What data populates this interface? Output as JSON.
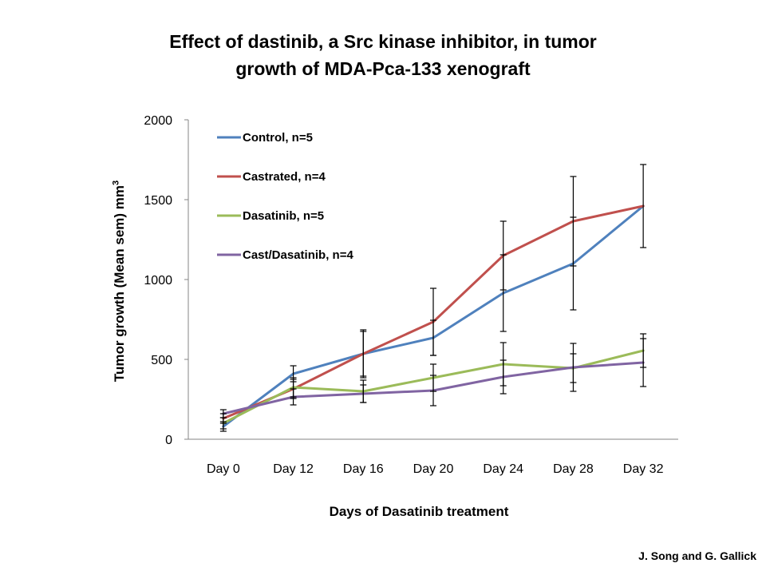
{
  "chart_data": {
    "type": "line",
    "title": "Effect of dastinib, a Src kinase inhibitor, in tumor growth of MDA-Pca-133 xenograft",
    "title_lines": [
      "Effect of dastinib, a Src kinase inhibitor, in tumor",
      "growth of MDA-Pca-133 xenograft"
    ],
    "xlabel": "Days of Dasatinib treatment",
    "ylabel_main": "Tumor growth (Mean  sem) mm",
    "ylabel_superscript": "3",
    "categories": [
      "Day 0",
      "Day 12",
      "Day 16",
      "Day 20",
      "Day 24",
      "Day 28",
      "Day 32"
    ],
    "ylim": [
      0,
      2000
    ],
    "yticks": [
      "0",
      "500",
      "1000",
      "1500",
      "2000"
    ],
    "legend_position": "top-left",
    "grid": false,
    "series": [
      {
        "name": "Control, n=5",
        "color": "#4F81BD",
        "values": [
          80,
          410,
          535,
          635,
          915,
          1100,
          1460
        ],
        "errors": [
          30,
          50,
          150,
          110,
          240,
          290,
          260
        ]
      },
      {
        "name": "Castrated, n=4",
        "color": "#C0504D",
        "values": [
          130,
          315,
          535,
          735,
          1150,
          1365,
          1460
        ],
        "errors": [
          30,
          60,
          140,
          210,
          215,
          280,
          0
        ]
      },
      {
        "name": "Dasatinib, n=5",
        "color": "#9BBB59",
        "values": [
          100,
          325,
          300,
          385,
          470,
          445,
          555
        ],
        "errors": [
          35,
          60,
          70,
          85,
          135,
          90,
          105
        ]
      },
      {
        "name": "Cast/Dasatinib, n=4",
        "color": "#8064A2",
        "values": [
          160,
          265,
          285,
          305,
          390,
          450,
          480
        ],
        "errors": [
          25,
          50,
          55,
          95,
          105,
          150,
          150
        ]
      }
    ]
  },
  "credit": "J. Song and G. Gallick"
}
